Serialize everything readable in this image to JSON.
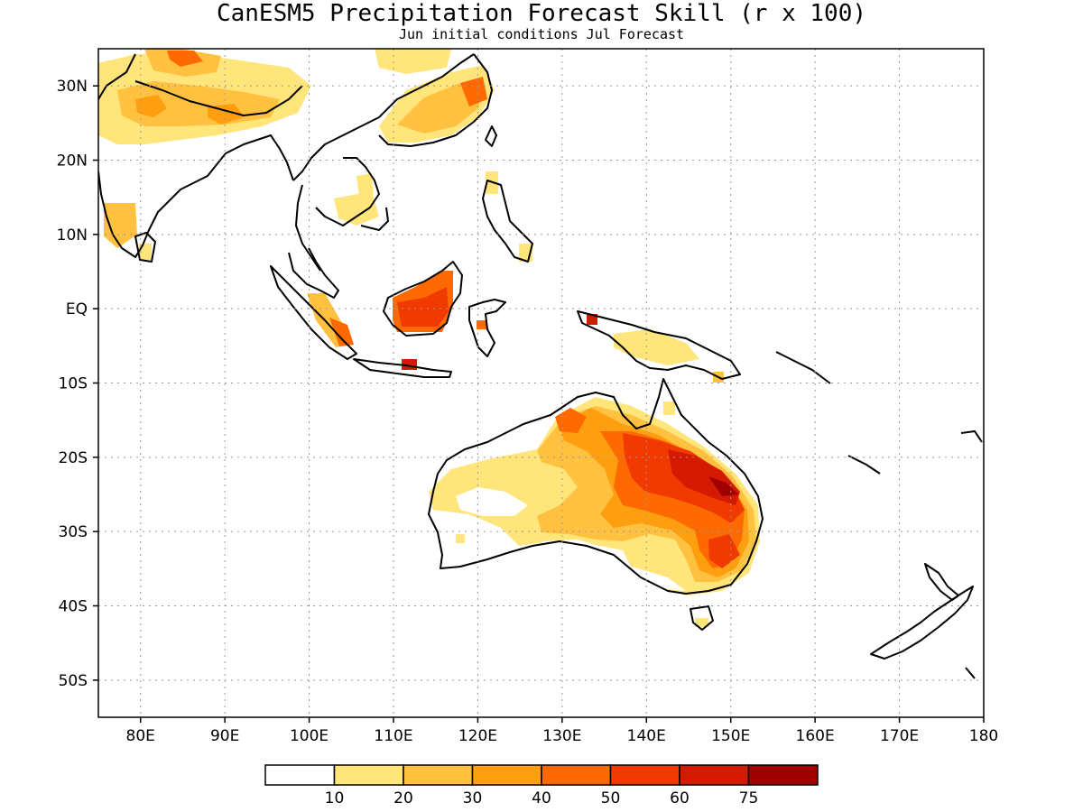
{
  "title": "CanESM5 Precipitation Forecast Skill (r x 100)",
  "subtitle": "Jun initial conditions  Jul Forecast",
  "map": {
    "lon_range": [
      75,
      180
    ],
    "lat_range": [
      -55,
      35
    ],
    "lat_ticks": [
      {
        "lat": 30,
        "label": "30N"
      },
      {
        "lat": 20,
        "label": "20N"
      },
      {
        "lat": 10,
        "label": "10N"
      },
      {
        "lat": 0,
        "label": "EQ"
      },
      {
        "lat": -10,
        "label": "10S"
      },
      {
        "lat": -20,
        "label": "20S"
      },
      {
        "lat": -30,
        "label": "30S"
      },
      {
        "lat": -40,
        "label": "40S"
      },
      {
        "lat": -50,
        "label": "50S"
      }
    ],
    "lon_ticks": [
      {
        "lon": 80,
        "label": "80E"
      },
      {
        "lon": 90,
        "label": "90E"
      },
      {
        "lon": 100,
        "label": "100E"
      },
      {
        "lon": 110,
        "label": "110E"
      },
      {
        "lon": 120,
        "label": "120E"
      },
      {
        "lon": 130,
        "label": "130E"
      },
      {
        "lon": 140,
        "label": "140E"
      },
      {
        "lon": 150,
        "label": "150E"
      },
      {
        "lon": 160,
        "label": "160E"
      },
      {
        "lon": 170,
        "label": "170E"
      },
      {
        "lon": 180,
        "label": "180"
      }
    ],
    "grid": "dotted"
  },
  "colorbar": {
    "colors": [
      "#ffffff",
      "#ffe57a",
      "#ffc13f",
      "#ff9e0f",
      "#ff6a00",
      "#f03a00",
      "#d41a00",
      "#a00000"
    ],
    "labels": [
      "10",
      "20",
      "30",
      "40",
      "50",
      "60",
      "75"
    ]
  }
}
